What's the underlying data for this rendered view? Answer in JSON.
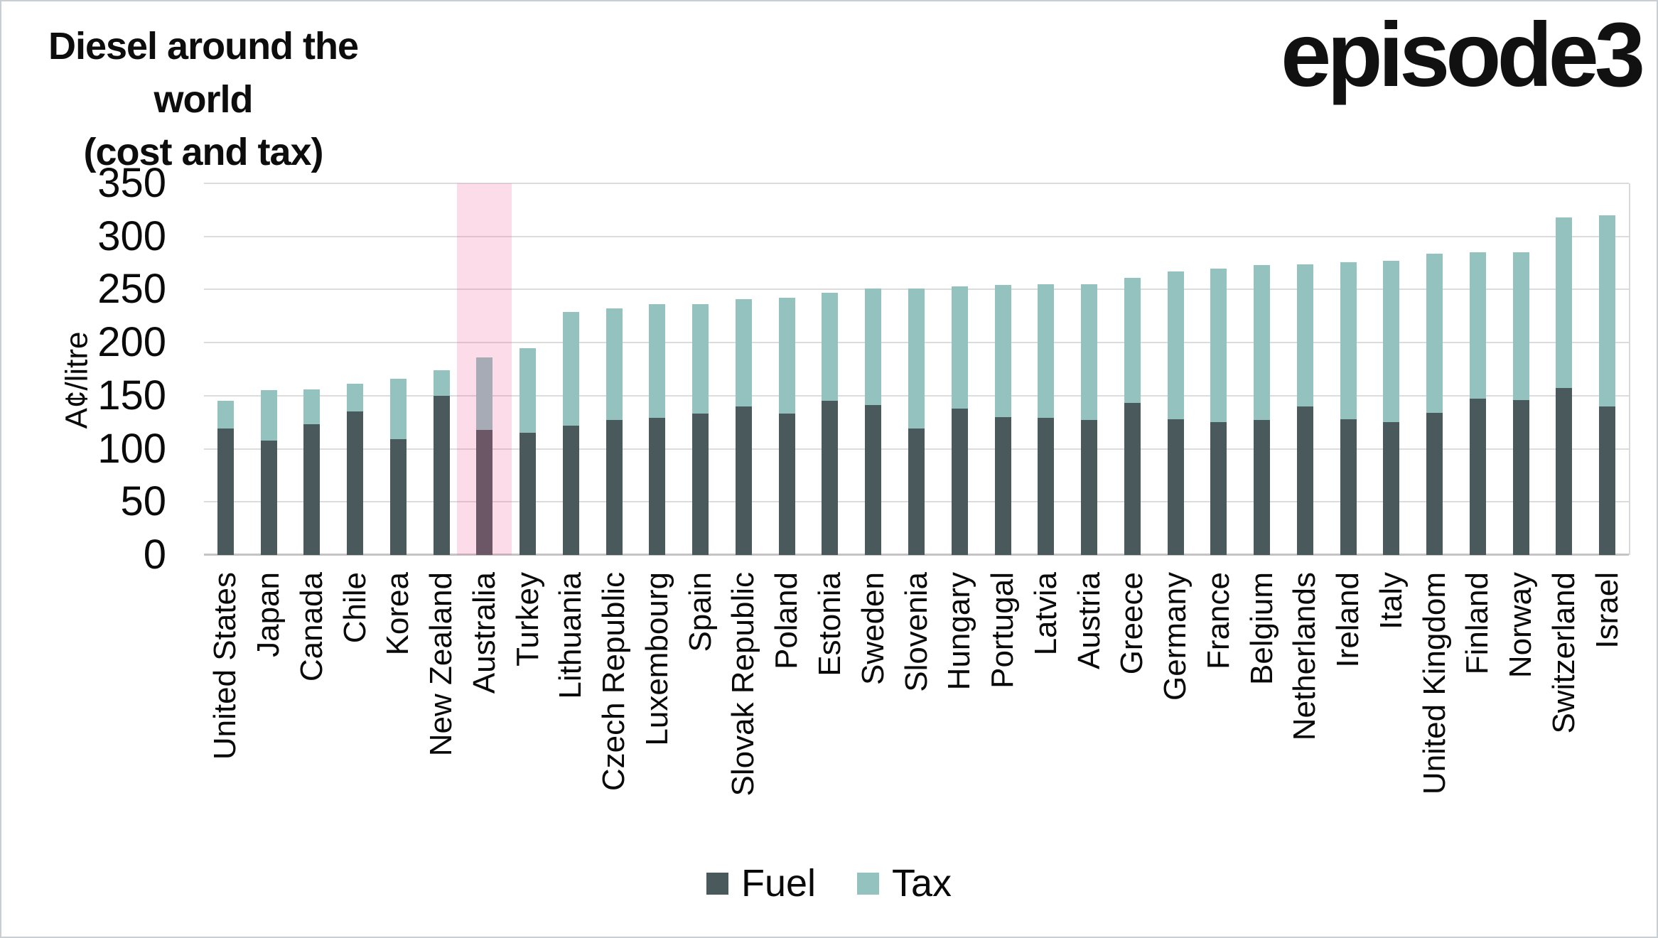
{
  "header": {
    "title_line1": "Diesel around the world",
    "title_line2": "(cost and tax)",
    "logo": "episode3"
  },
  "chart_data": {
    "type": "bar",
    "stacked": true,
    "title": "Diesel around the world (cost and tax)",
    "xlabel": "",
    "ylabel": "A¢/litre",
    "ylim": [
      0,
      350
    ],
    "yticks": [
      0,
      50,
      100,
      150,
      200,
      250,
      300,
      350
    ],
    "grid": true,
    "legend_position": "bottom",
    "categories": [
      "United States",
      "Japan",
      "Canada",
      "Chile",
      "Korea",
      "New Zealand",
      "Australia",
      "Turkey",
      "Lithuania",
      "Czech Republic",
      "Luxembourg",
      "Spain",
      "Slovak Republic",
      "Poland",
      "Estonia",
      "Sweden",
      "Slovenia",
      "Hungary",
      "Portugal",
      "Latvia",
      "Austria",
      "Greece",
      "Germany",
      "France",
      "Belgium",
      "Netherlands",
      "Ireland",
      "Italy",
      "United Kingdom",
      "Finland",
      "Norway",
      "Switzerland",
      "Israel"
    ],
    "series": [
      {
        "name": "Fuel",
        "color": "#49595c",
        "values": [
          119,
          108,
          123,
          135,
          109,
          150,
          118,
          115,
          122,
          127,
          129,
          133,
          140,
          133,
          145,
          141,
          119,
          138,
          130,
          129,
          127,
          143,
          128,
          125,
          127,
          140,
          128,
          125,
          134,
          147,
          146,
          157,
          140
        ]
      },
      {
        "name": "Tax",
        "color": "#94c2bf",
        "values": [
          26,
          47,
          33,
          26,
          57,
          24,
          68,
          80,
          107,
          105,
          107,
          103,
          101,
          109,
          102,
          110,
          132,
          115,
          124,
          126,
          128,
          118,
          139,
          145,
          146,
          134,
          148,
          152,
          150,
          138,
          139,
          161,
          180
        ]
      }
    ],
    "totals": [
      145,
      155,
      156,
      161,
      166,
      174,
      186,
      195,
      229,
      232,
      236,
      236,
      241,
      242,
      247,
      251,
      251,
      253,
      254,
      255,
      255,
      261,
      267,
      270,
      273,
      274,
      276,
      277,
      284,
      285,
      285,
      318,
      320
    ],
    "highlight": {
      "category": "Australia",
      "color": "#f55091",
      "opacity": 0.2
    }
  }
}
